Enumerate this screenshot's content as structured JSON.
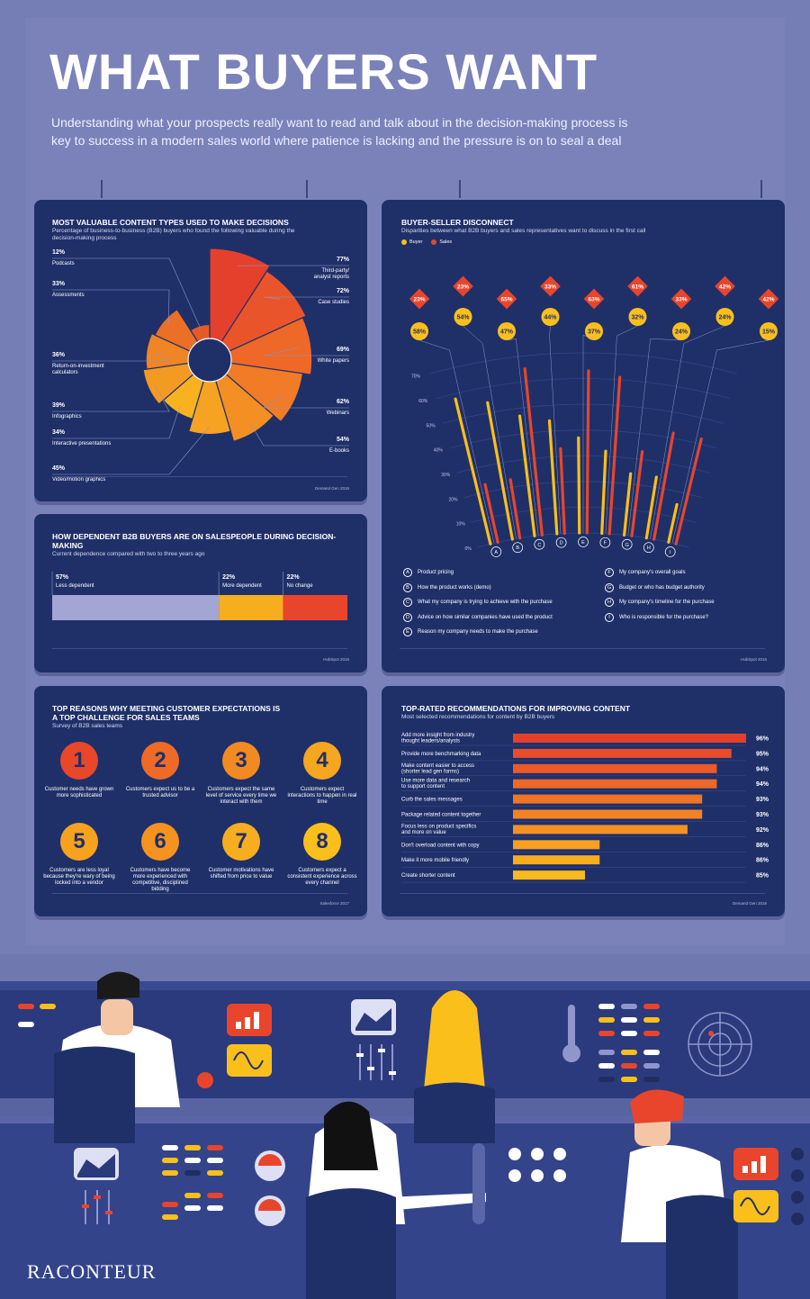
{
  "header": {
    "title": "WHAT BUYERS WANT",
    "intro_line1": "Understanding what your prospects really want to read and talk about in the decision-making process is",
    "intro_line2": "key to success in a modern sales world where patience is lacking and the pressure is on to seal a deal"
  },
  "content_types": {
    "title": "MOST VALUABLE CONTENT TYPES USED TO MAKE DECISIONS",
    "subtitle_line1": "Percentage of business-to-business (B2B) buyers who found the following valuable during the",
    "subtitle_line2": "decision-making process",
    "source": "Demand Gen 2016"
  },
  "dependence": {
    "title": "HOW DEPENDENT B2B BUYERS ARE ON SALESPEOPLE DURING DECISION-MAKING",
    "subtitle": "Current dependence compared with two to three years ago",
    "source": "HubSpot 2016"
  },
  "disconnect": {
    "title": "BUYER-SELLER DISCONNECT",
    "subtitle": "Disparities between what B2B buyers and sales representatives want to discuss in the first call",
    "legend_buyer": "Buyer",
    "legend_sales": "Sales",
    "source": "HubSpot 2016"
  },
  "reasons": {
    "title_line1": "TOP REASONS WHY MEETING CUSTOMER EXPECTATIONS IS",
    "title_line2": "A TOP CHALLENGE FOR SALES TEAMS",
    "subtitle": "Survey of B2B sales teams",
    "source": "Salesforce 2017",
    "items": [
      {
        "num": "1",
        "text": "Customer needs have grown more sophisticated",
        "color": "#e8472a"
      },
      {
        "num": "2",
        "text": "Customers expect us to be a trusted advisor",
        "color": "#ee6a26"
      },
      {
        "num": "3",
        "text": "Customers expect the same level of service every time we interact with them",
        "color": "#f28a22"
      },
      {
        "num": "4",
        "text": "Customers expect interactions to happen in real time",
        "color": "#f6a61f"
      },
      {
        "num": "5",
        "text": "Customers are less loyal because they're wary of being locked into a vendor",
        "color": "#f7a21e"
      },
      {
        "num": "6",
        "text": "Customers have become more experienced with competitive, disciplined bidding",
        "color": "#f59220"
      },
      {
        "num": "7",
        "text": "Customer motivations have shifted from price to value",
        "color": "#f6ae1e"
      },
      {
        "num": "8",
        "text": "Customers expect a consistent experience across every channel",
        "color": "#fbbf1c"
      }
    ]
  },
  "recommendations": {
    "title": "TOP-RATED RECOMMENDATIONS FOR IMPROVING CONTENT",
    "subtitle": "Most selected recommendations for content by B2B buyers",
    "source": "Demand Gen 2016"
  },
  "brand": {
    "logo": "RACONTEUR"
  },
  "chart_data": [
    {
      "id": "content_types",
      "type": "pie",
      "title": "MOST VALUABLE CONTENT TYPES USED TO MAKE DECISIONS",
      "categories": [
        "Third-party/ analyst reports",
        "Case studies",
        "White papers",
        "Webinars",
        "E-books",
        "Video/motion graphics",
        "Interactive presentations",
        "Infographics",
        "Return-on-investment calculators",
        "Assessments",
        "Podcasts"
      ],
      "values": [
        77,
        72,
        69,
        62,
        54,
        45,
        34,
        39,
        36,
        33,
        12
      ],
      "labels": [
        "77%",
        "72%",
        "69%",
        "62%",
        "54%",
        "45%",
        "34%",
        "39%",
        "36%",
        "33%",
        "12%"
      ],
      "label_lines": [
        [
          "Third-party/",
          "analyst reports"
        ],
        [
          "Case studies"
        ],
        [
          "White papers"
        ],
        [
          "Webinars"
        ],
        [
          "E-books"
        ],
        [
          "Video/motion graphics"
        ],
        [
          "Interactive presentations"
        ],
        [
          "Infographics"
        ],
        [
          "Return-on-investment",
          "calculators"
        ],
        [
          "Assessments"
        ],
        [
          "Podcasts"
        ]
      ],
      "colors": [
        "#e4402b",
        "#ea542a",
        "#ee6828",
        "#f17b26",
        "#f48f24",
        "#f6a222",
        "#f8b220",
        "#f39a22",
        "#ef8524",
        "#eb6f26",
        "#e65a28"
      ]
    },
    {
      "id": "dependence",
      "type": "bar",
      "categories": [
        "Less dependent",
        "More dependent",
        "No change"
      ],
      "values": [
        57,
        22,
        22
      ],
      "labels": [
        "57%",
        "22%",
        "22%"
      ],
      "colors": [
        "#a3a6d4",
        "#f6ae1e",
        "#e8452c"
      ]
    },
    {
      "id": "disconnect",
      "type": "bar",
      "title": "BUYER-SELLER DISCONNECT",
      "categories": [
        "A",
        "B",
        "C",
        "D",
        "E",
        "F",
        "G",
        "H",
        "I"
      ],
      "category_names": [
        "Product pricing",
        "How the product works (demo)",
        "What my company is trying to achieve with the purchase",
        "Advice on how similar companies have used the product",
        "Reason my company needs to make the purchase",
        "My company's overall goals",
        "Budget or who has budget authority",
        "My company's timeline for the purchase",
        "Who is responsible for the purchase?"
      ],
      "series": [
        {
          "name": "Buyer",
          "values": [
            58,
            54,
            47,
            44,
            37,
            32,
            24,
            24,
            15
          ],
          "labels": [
            "58%",
            "54%",
            "47%",
            "44%",
            "37%",
            "32%",
            "24%",
            "24%",
            "15%"
          ],
          "color": "#fbbf1c"
        },
        {
          "name": "Sales",
          "values": [
            23,
            23,
            65,
            33,
            63,
            61,
            33,
            42,
            42
          ],
          "labels": [
            "23%",
            "23%",
            "65%",
            "33%",
            "63%",
            "61%",
            "33%",
            "42%",
            "42%"
          ],
          "color": "#e8452c"
        }
      ],
      "yticks": [
        "0%",
        "10%",
        "20%",
        "30%",
        "40%",
        "50%",
        "60%",
        "70%"
      ],
      "ylim": [
        0,
        70
      ]
    },
    {
      "id": "recommendations",
      "type": "bar",
      "categories": [
        "Add more insight from industry thought leaders/analysts",
        "Provide more benchmarking data",
        "Make content easier to access (shorter lead gen forms)",
        "Use more data and research to support content",
        "Curb the sales messages",
        "Package related content together",
        "Focus less on product specifics and more on value",
        "Don't overload content with copy",
        "Make it more mobile friendly",
        "Create shorter content"
      ],
      "label_lines": [
        [
          "Add more insight from industry",
          "thought leaders/analysts"
        ],
        [
          "Provide more benchmarking data"
        ],
        [
          "Make content easier to access",
          "(shorter lead gen forms)"
        ],
        [
          "Use more data and research",
          "to support content"
        ],
        [
          "Curb the sales messages"
        ],
        [
          "Package related content together"
        ],
        [
          "Focus less on product specifics",
          "and more on value"
        ],
        [
          "Don't overload content with copy"
        ],
        [
          "Make it more mobile friendly"
        ],
        [
          "Create shorter content"
        ]
      ],
      "values": [
        96,
        95,
        94,
        94,
        93,
        93,
        92,
        86,
        86,
        85
      ],
      "labels": [
        "96%",
        "95%",
        "94%",
        "94%",
        "93%",
        "93%",
        "92%",
        "86%",
        "86%",
        "85%"
      ],
      "colors": [
        "#e4402b",
        "#e84c2a",
        "#eb5a28",
        "#ee6828",
        "#f07526",
        "#f38224",
        "#f59022",
        "#f7a021",
        "#f8ad20",
        "#f9b91f"
      ]
    }
  ]
}
